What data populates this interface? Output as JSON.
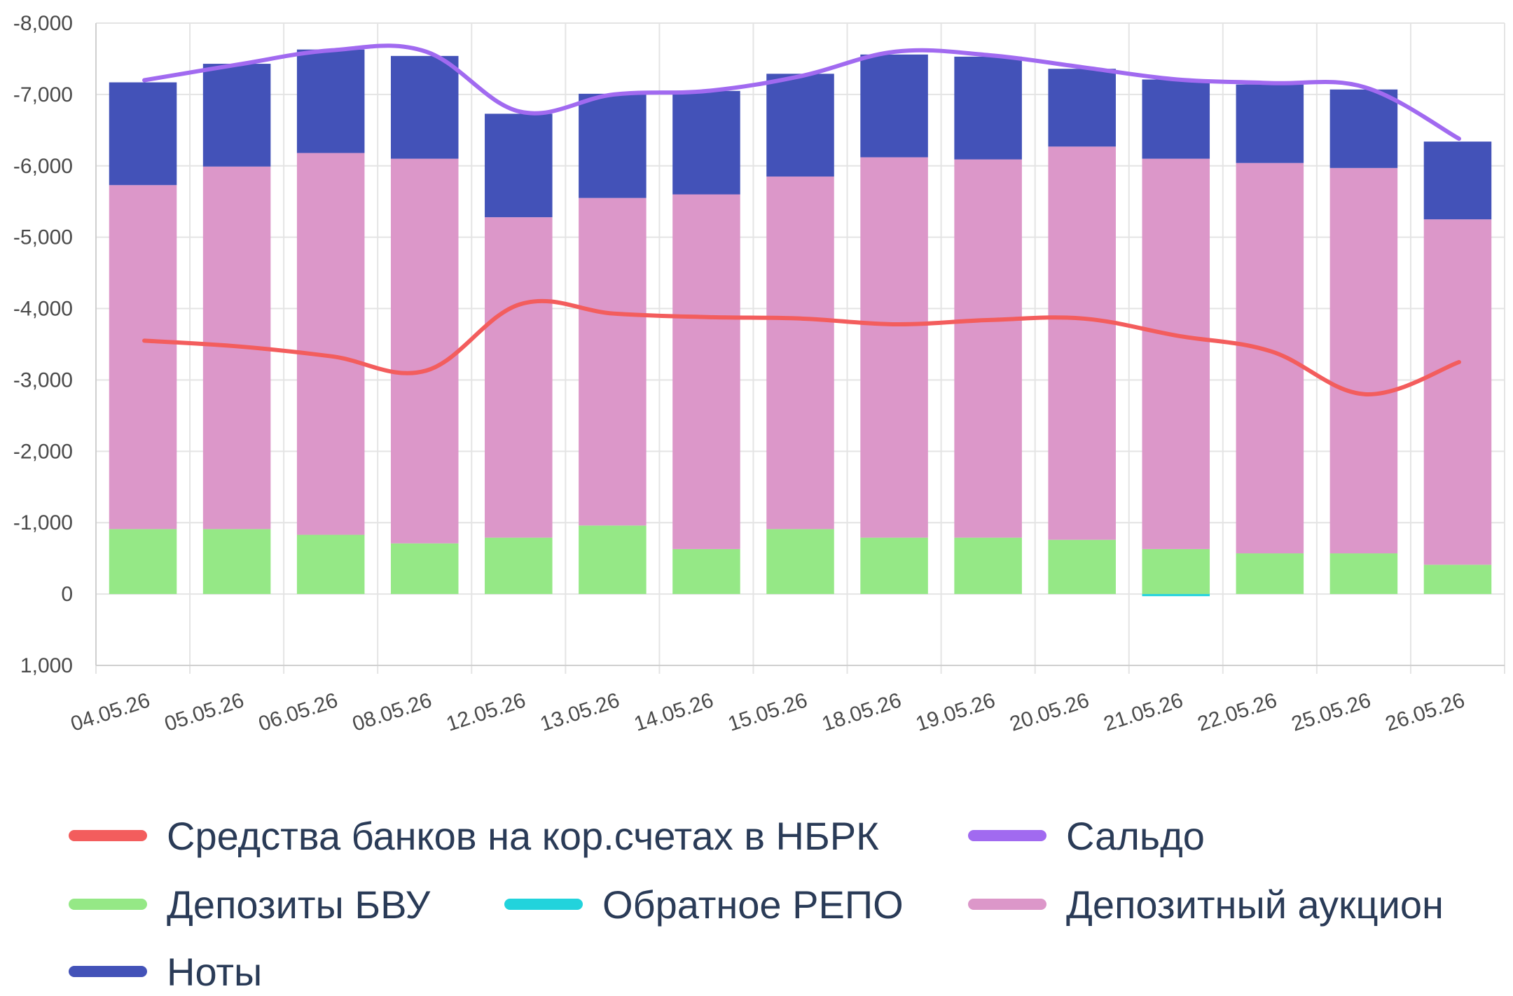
{
  "chart_data": {
    "type": "bar",
    "categories": [
      "04.05.26",
      "05.05.26",
      "06.05.26",
      "08.05.26",
      "12.05.26",
      "13.05.26",
      "14.05.26",
      "15.05.26",
      "18.05.26",
      "19.05.26",
      "20.05.26",
      "21.05.26",
      "22.05.26",
      "25.05.26",
      "26.05.26"
    ],
    "y_ticks": [
      "-8,000",
      "-7,000",
      "-6,000",
      "-5,000",
      "-4,000",
      "-3,000",
      "-2,000",
      "-1,000",
      "0",
      "1,000"
    ],
    "ylim": [
      -8000,
      1000
    ],
    "grid": true,
    "legend_position": "bottom",
    "series": [
      {
        "name": "Депозиты БВУ",
        "kind": "bar",
        "color": "#95e886",
        "values": [
          -910,
          -910,
          -830,
          -710,
          -790,
          -960,
          -630,
          -910,
          -790,
          -790,
          -760,
          -630,
          -570,
          -570,
          -410
        ]
      },
      {
        "name": "Обратное РЕПО",
        "kind": "bar",
        "color": "#22d3dc",
        "values": [
          0,
          0,
          0,
          0,
          0,
          0,
          0,
          0,
          0,
          0,
          0,
          30,
          0,
          0,
          0
        ]
      },
      {
        "name": "Депозитный аукцион",
        "kind": "bar",
        "color": "#dc97c9",
        "values": [
          -4820,
          -5080,
          -5350,
          -5390,
          -4490,
          -4590,
          -4970,
          -4940,
          -5330,
          -5300,
          -5510,
          -5470,
          -5470,
          -5400,
          -4840
        ]
      },
      {
        "name": "Ноты",
        "kind": "bar",
        "color": "#4352b8",
        "values": [
          -1440,
          -1440,
          -1450,
          -1440,
          -1450,
          -1460,
          -1450,
          -1440,
          -1440,
          -1440,
          -1090,
          -1110,
          -1100,
          -1100,
          -1090
        ]
      },
      {
        "name": "Средства банков на кор.счетах в НБРК",
        "kind": "line",
        "color": "#f35d5d",
        "values": [
          -3550,
          -3470,
          -3330,
          -3130,
          -4060,
          -3930,
          -3880,
          -3860,
          -3780,
          -3840,
          -3860,
          -3620,
          -3400,
          -2800,
          -3250
        ]
      },
      {
        "name": "Сальдо",
        "kind": "line",
        "color": "#a16af0",
        "values": [
          -7200,
          -7420,
          -7620,
          -7600,
          -6760,
          -7000,
          -7050,
          -7260,
          -7600,
          -7550,
          -7380,
          -7210,
          -7160,
          -7100,
          -6380
        ]
      }
    ],
    "legend": [
      {
        "label": "Средства банков на кор.счетах в НБРК",
        "color": "#f35d5d"
      },
      {
        "label": "Сальдо",
        "color": "#a16af0"
      },
      {
        "label": "Депозиты БВУ",
        "color": "#95e886"
      },
      {
        "label": "Обратное РЕПО",
        "color": "#22d3dc"
      },
      {
        "label": "Депозитный аукцион",
        "color": "#dc97c9"
      },
      {
        "label": "Ноты",
        "color": "#4352b8"
      }
    ]
  }
}
